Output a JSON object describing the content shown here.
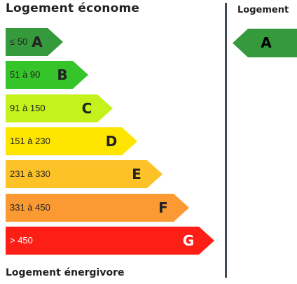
{
  "labels": {
    "top": "Logement économe",
    "bottom": "Logement énergivore",
    "current": "Logement"
  },
  "ratings": [
    {
      "letter": "A",
      "range": "≤ 50",
      "color": "#359a3c",
      "text_color": "#222222"
    },
    {
      "letter": "B",
      "range": "51 à 90",
      "color": "#36c42b",
      "text_color": "#222222"
    },
    {
      "letter": "C",
      "range": "91 à 150",
      "color": "#c4f21c",
      "text_color": "#222222"
    },
    {
      "letter": "D",
      "range": "151 à 230",
      "color": "#fde500",
      "text_color": "#222222"
    },
    {
      "letter": "E",
      "range": "231 à 330",
      "color": "#fdc227",
      "text_color": "#222222"
    },
    {
      "letter": "F",
      "range": "331 à 450",
      "color": "#fb9a33",
      "text_color": "#222222"
    },
    {
      "letter": "G",
      "range": "> 450",
      "color": "#fd1e16",
      "text_color": "#ffffff"
    }
  ],
  "current_rating": {
    "letter": "A",
    "color": "#359a3c"
  }
}
